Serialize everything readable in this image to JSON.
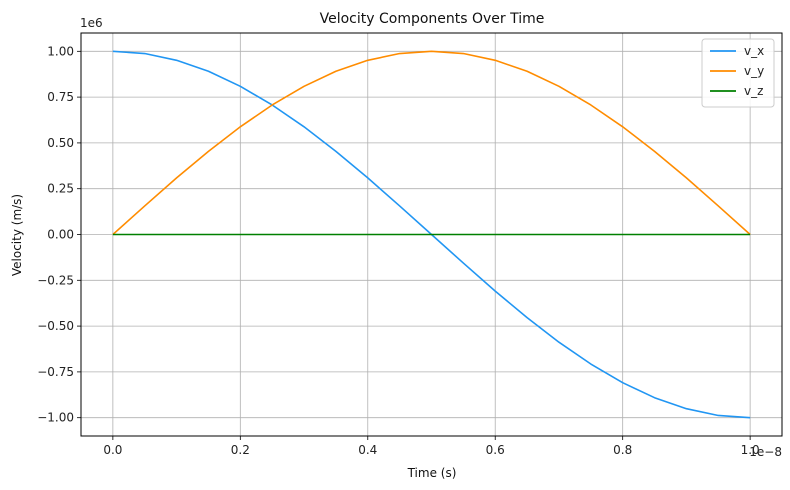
{
  "chart_data": {
    "type": "line",
    "title": "Velocity Components Over Time",
    "xlabel": "Time (s)",
    "ylabel": "Velocity (m/s)",
    "x_multiplier": "1e−8",
    "y_multiplier": "1e6",
    "xlim": [
      -0.05,
      1.05
    ],
    "ylim": [
      -1.1,
      1.1
    ],
    "x_ticks": [
      0.0,
      0.2,
      0.4,
      0.6,
      0.8,
      1.0
    ],
    "x_tick_labels": [
      "0.0",
      "0.2",
      "0.4",
      "0.6",
      "0.8",
      "1.0"
    ],
    "y_ticks": [
      -1.0,
      -0.75,
      -0.5,
      -0.25,
      0.0,
      0.25,
      0.5,
      0.75,
      1.0
    ],
    "y_tick_labels": [
      "−1.00",
      "−0.75",
      "−0.50",
      "−0.25",
      "0.00",
      "0.25",
      "0.50",
      "0.75",
      "1.00"
    ],
    "grid": true,
    "legend_position": "top-right",
    "x": [
      0.0,
      0.05,
      0.1,
      0.15,
      0.2,
      0.25,
      0.3,
      0.35,
      0.4,
      0.45,
      0.5,
      0.55,
      0.6,
      0.65,
      0.7,
      0.75,
      0.8,
      0.85,
      0.9,
      0.95,
      1.0
    ],
    "series": [
      {
        "name": "v_x",
        "color": "#2196f3",
        "values": [
          1.0,
          0.988,
          0.951,
          0.891,
          0.809,
          0.707,
          0.588,
          0.454,
          0.309,
          0.156,
          0.0,
          -0.156,
          -0.309,
          -0.454,
          -0.588,
          -0.707,
          -0.809,
          -0.891,
          -0.951,
          -0.988,
          -1.0
        ]
      },
      {
        "name": "v_y",
        "color": "#ff8c00",
        "values": [
          0.0,
          0.156,
          0.309,
          0.454,
          0.588,
          0.707,
          0.809,
          0.891,
          0.951,
          0.988,
          1.0,
          0.988,
          0.951,
          0.891,
          0.809,
          0.707,
          0.588,
          0.454,
          0.309,
          0.156,
          0.0
        ]
      },
      {
        "name": "v_z",
        "color": "#008000",
        "values": [
          0.0,
          0.0,
          0.0,
          0.0,
          0.0,
          0.0,
          0.0,
          0.0,
          0.0,
          0.0,
          0.0,
          0.0,
          0.0,
          0.0,
          0.0,
          0.0,
          0.0,
          0.0,
          0.0,
          0.0,
          0.0
        ]
      }
    ]
  }
}
